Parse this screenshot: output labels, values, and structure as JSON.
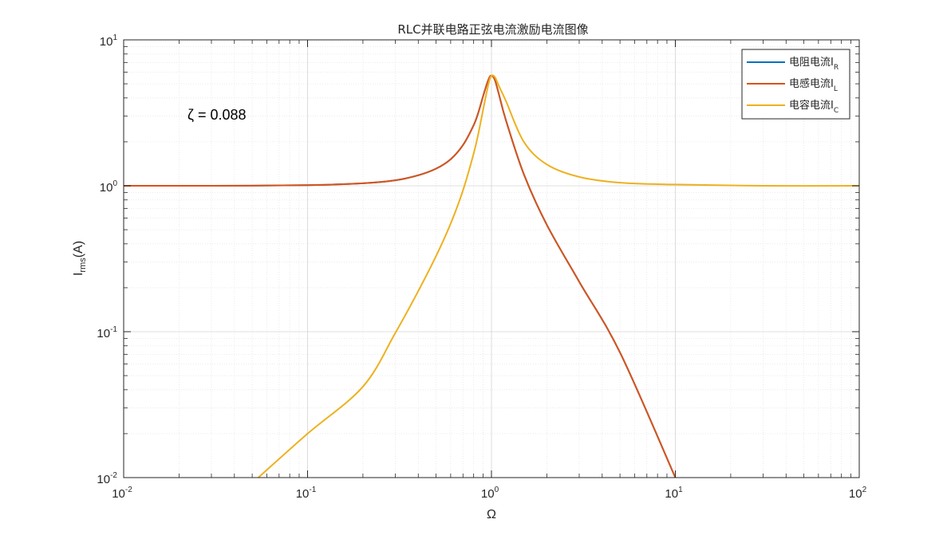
{
  "chart_data": {
    "type": "line",
    "title": "RLC并联电路正弦电流激励电流图像",
    "xlabel": "Ω",
    "ylabel": {
      "main": "I",
      "sub": "rms",
      "unit": "(A)"
    },
    "xscale": "log",
    "yscale": "log",
    "xlim": [
      0.01,
      100
    ],
    "ylim": [
      0.01,
      10
    ],
    "grid": true,
    "minor_grid": true,
    "x_ticks": [
      {
        "value": 0.01,
        "base": "10",
        "exp": "-2"
      },
      {
        "value": 0.1,
        "base": "10",
        "exp": "-1"
      },
      {
        "value": 1,
        "base": "10",
        "exp": "0"
      },
      {
        "value": 10,
        "base": "10",
        "exp": "1"
      },
      {
        "value": 100,
        "base": "10",
        "exp": "2"
      }
    ],
    "y_ticks": [
      {
        "value": 0.01,
        "base": "10",
        "exp": "-2"
      },
      {
        "value": 0.1,
        "base": "10",
        "exp": "-1"
      },
      {
        "value": 1,
        "base": "10",
        "exp": "0"
      },
      {
        "value": 10,
        "base": "10",
        "exp": "1"
      }
    ],
    "legend_position": "top-right",
    "annotation": "ζ = 0.088",
    "series": [
      {
        "name": "电阻电流",
        "sub": "R",
        "color": "#0072BD",
        "x": [
          0.01,
          0.03,
          0.1,
          0.2,
          0.3,
          0.4,
          0.5,
          0.6,
          0.7,
          0.8,
          0.85,
          0.9,
          0.95,
          0.98,
          1.0,
          1.02,
          1.05,
          1.1,
          1.2,
          1.5,
          2,
          3,
          5,
          10
        ],
        "values": [
          1.0,
          1.0,
          1.01,
          1.04,
          1.09,
          1.18,
          1.31,
          1.52,
          1.9,
          2.6,
          3.2,
          4.1,
          5.1,
          5.6,
          5.68,
          5.6,
          5.2,
          4.2,
          2.8,
          1.2,
          0.54,
          0.22,
          0.072,
          0.01
        ]
      },
      {
        "name": "电感电流",
        "sub": "L",
        "color": "#D95319",
        "x": [
          0.01,
          0.03,
          0.1,
          0.2,
          0.3,
          0.4,
          0.5,
          0.6,
          0.7,
          0.8,
          0.85,
          0.9,
          0.95,
          0.98,
          1.0,
          1.02,
          1.05,
          1.1,
          1.2,
          1.5,
          2,
          3,
          5,
          10
        ],
        "values": [
          1.0,
          1.0,
          1.01,
          1.04,
          1.09,
          1.18,
          1.31,
          1.52,
          1.9,
          2.6,
          3.2,
          4.1,
          5.1,
          5.6,
          5.68,
          5.6,
          5.2,
          4.2,
          2.8,
          1.2,
          0.54,
          0.22,
          0.072,
          0.01
        ]
      },
      {
        "name": "电容电流",
        "sub": "C",
        "color": "#EDB120",
        "x": [
          0.054,
          0.1,
          0.2,
          0.3,
          0.4,
          0.5,
          0.6,
          0.7,
          0.8,
          0.85,
          0.9,
          0.95,
          0.98,
          1.0,
          1.02,
          1.05,
          1.1,
          1.2,
          1.5,
          2,
          3,
          5,
          10,
          30,
          100
        ],
        "values": [
          0.01,
          0.02,
          0.042,
          0.098,
          0.19,
          0.33,
          0.55,
          0.93,
          1.66,
          2.3,
          3.3,
          4.6,
          5.4,
          5.68,
          5.7,
          5.5,
          4.8,
          3.8,
          2.0,
          1.4,
          1.15,
          1.05,
          1.02,
          1.0,
          1.0
        ]
      }
    ]
  }
}
